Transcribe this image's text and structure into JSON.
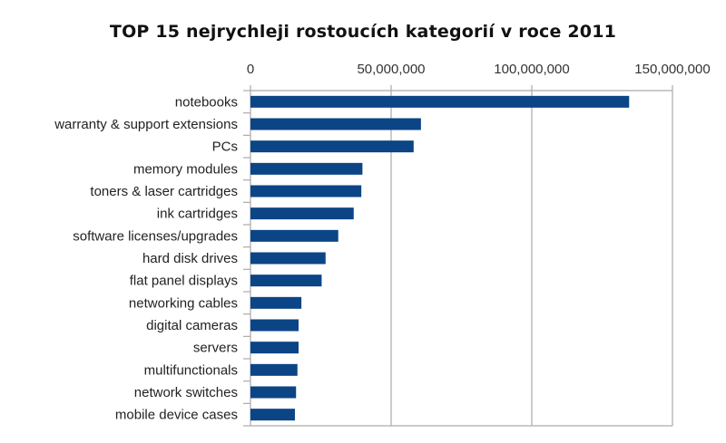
{
  "chart_data": {
    "type": "bar",
    "orientation": "horizontal",
    "title": "TOP 15 nejrychleji rostoucích kategorií v roce 2011",
    "xlabel": "",
    "ylabel": "",
    "xlim": [
      0,
      150000000
    ],
    "xticks": [
      0,
      50000000,
      100000000,
      150000000
    ],
    "xtick_labels": [
      "0",
      "50,000,000",
      "100,000,000",
      "150,000,000"
    ],
    "grid": true,
    "bar_color": "#0b4586",
    "categories": [
      "notebooks",
      "warranty & support extensions",
      "PCs",
      "memory modules",
      "toners & laser cartridges",
      "ink cartridges",
      "software licenses/upgrades",
      "hard disk drives",
      "flat panel displays",
      "networking cables",
      "digital cameras",
      "servers",
      "multifunctionals",
      "network switches",
      "mobile device cases"
    ],
    "values": [
      134600000,
      60600000,
      58000000,
      39800000,
      39400000,
      36700000,
      31200000,
      26700000,
      25300000,
      18100000,
      17100000,
      17100000,
      16700000,
      16200000,
      15800000
    ]
  }
}
